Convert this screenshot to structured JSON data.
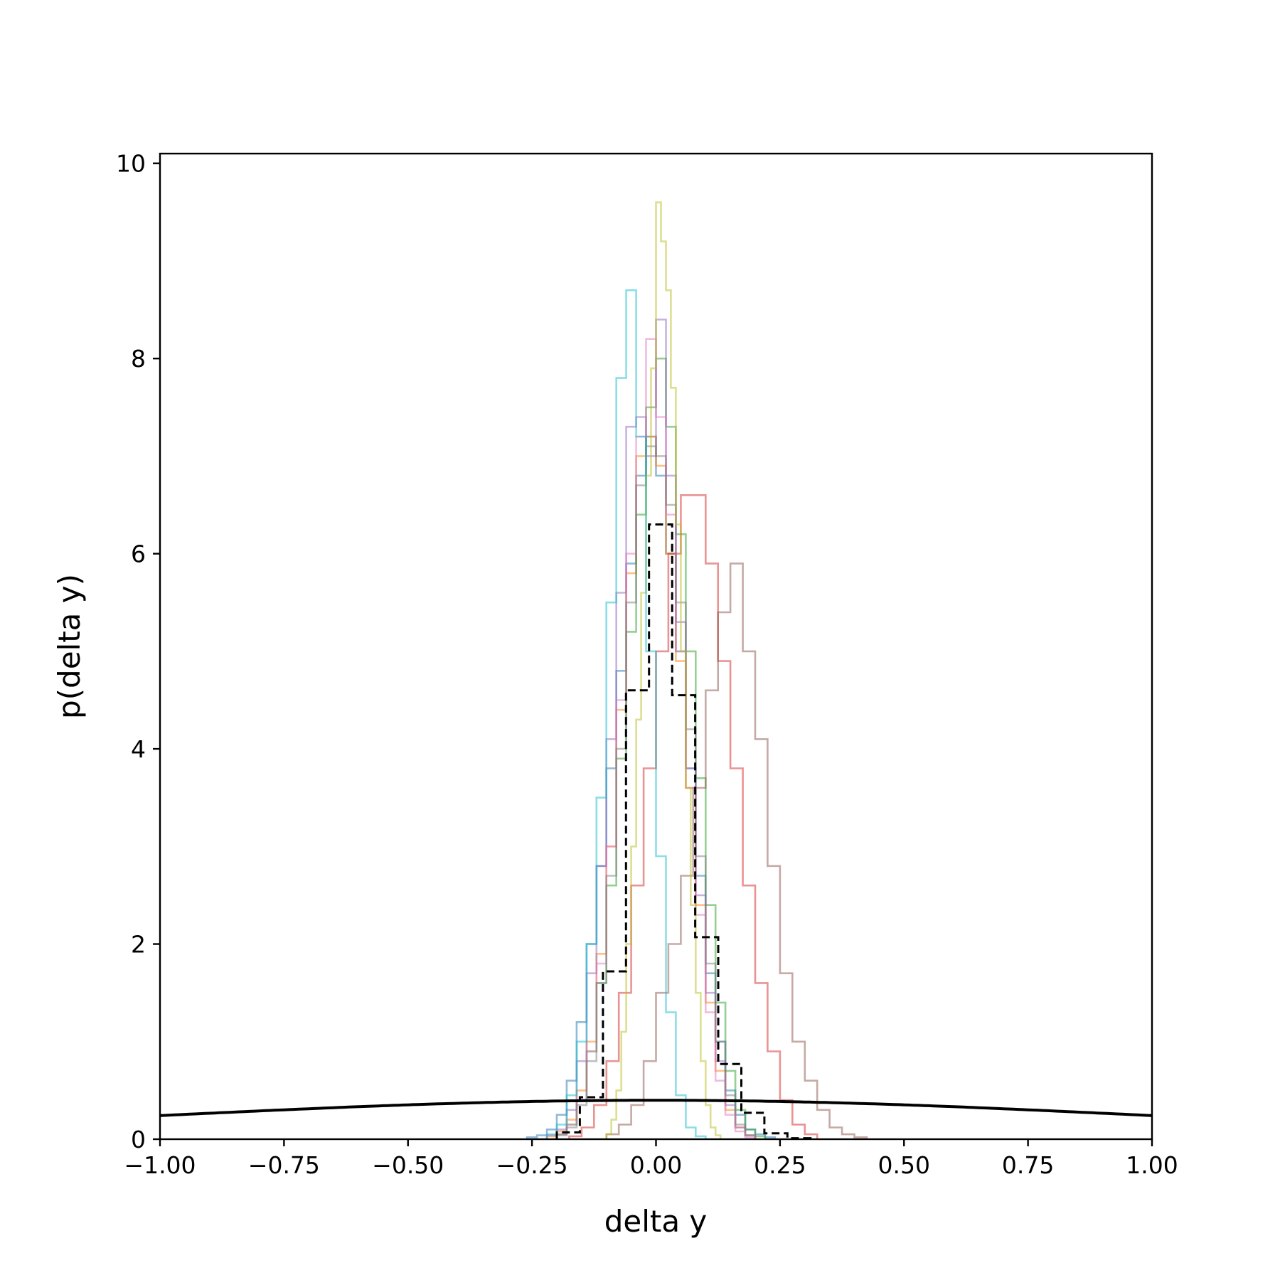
{
  "chart_data": {
    "type": "histogram",
    "xlabel": "delta y",
    "ylabel": "p(delta y)",
    "xlim": [
      -1.0,
      1.0
    ],
    "ylim": [
      0,
      10.1
    ],
    "xticks": [
      -1.0,
      -0.75,
      -0.5,
      -0.25,
      0.0,
      0.25,
      0.5,
      0.75,
      1.0
    ],
    "xtick_labels": [
      "−1.00",
      "−0.75",
      "−0.50",
      "−0.25",
      "0.00",
      "0.25",
      "0.50",
      "0.75",
      "1.00"
    ],
    "yticks": [
      0,
      2,
      4,
      6,
      8,
      10
    ],
    "ytick_labels": [
      "0",
      "2",
      "4",
      "6",
      "8",
      "10"
    ],
    "grid": false,
    "legend": false,
    "series": [
      {
        "color": "#1f77b4",
        "bin_width": 0.02,
        "x0": -0.26,
        "values": [
          0.02,
          0.04,
          0.1,
          0.25,
          0.6,
          1.2,
          2.0,
          2.8,
          3.8,
          4.8,
          5.9,
          6.8,
          7.2,
          6.8,
          6.0,
          5.0,
          3.8,
          2.7,
          1.7,
          1.0,
          0.5,
          0.25,
          0.1,
          0.05,
          0.02
        ]
      },
      {
        "color": "#ff7f0e",
        "bin_width": 0.02,
        "x0": -0.22,
        "values": [
          0.03,
          0.08,
          0.2,
          0.5,
          1.0,
          1.9,
          3.0,
          4.4,
          5.8,
          7.0,
          7.2,
          6.9,
          6.0,
          4.9,
          3.6,
          2.4,
          1.4,
          0.7,
          0.3,
          0.12,
          0.04
        ]
      },
      {
        "color": "#2ca02c",
        "bin_width": 0.02,
        "x0": -0.2,
        "values": [
          0.05,
          0.15,
          0.4,
          0.9,
          1.6,
          2.6,
          3.9,
          5.2,
          6.4,
          7.5,
          8.0,
          7.3,
          6.2,
          5.0,
          3.7,
          2.4,
          1.4,
          0.7,
          0.3,
          0.1,
          0.03
        ]
      },
      {
        "color": "#d62728",
        "bin_width": 0.025,
        "x0": -0.175,
        "values": [
          0.03,
          0.12,
          0.35,
          0.8,
          1.5,
          2.6,
          3.8,
          5.0,
          6.0,
          6.6,
          6.6,
          5.9,
          4.9,
          3.8,
          2.6,
          1.6,
          0.9,
          0.4,
          0.15,
          0.05
        ]
      },
      {
        "color": "#9467bd",
        "bin_width": 0.02,
        "x0": -0.22,
        "values": [
          0.04,
          0.1,
          0.3,
          0.8,
          1.7,
          2.8,
          4.1,
          5.6,
          7.3,
          7.4,
          7.0,
          8.4,
          6.8,
          5.3,
          3.8,
          2.5,
          1.5,
          0.8,
          0.35,
          0.12,
          0.04
        ]
      },
      {
        "color": "#8c564b",
        "bin_width": 0.025,
        "x0": -0.1,
        "values": [
          0.05,
          0.15,
          0.35,
          0.8,
          1.5,
          2.0,
          2.7,
          3.6,
          4.6,
          5.4,
          5.9,
          5.0,
          4.1,
          2.8,
          1.7,
          1.0,
          0.6,
          0.3,
          0.12,
          0.05,
          0.02
        ]
      },
      {
        "color": "#e377c2",
        "bin_width": 0.02,
        "x0": -0.2,
        "values": [
          0.05,
          0.15,
          0.4,
          0.9,
          1.8,
          3.0,
          4.5,
          6.0,
          7.2,
          8.2,
          7.4,
          6.4,
          5.0,
          3.6,
          2.3,
          1.3,
          0.6,
          0.25,
          0.08,
          0.02
        ]
      },
      {
        "color": "#7f7f7f",
        "bin_width": 0.02,
        "x0": -0.2,
        "values": [
          0.04,
          0.12,
          0.35,
          0.8,
          1.6,
          2.7,
          4.0,
          5.5,
          6.7,
          7.1,
          7.0,
          6.5,
          5.5,
          4.2,
          2.9,
          1.8,
          1.0,
          0.45,
          0.15,
          0.04
        ]
      },
      {
        "color": "#bcbd22",
        "bin_width": 0.01,
        "x0": -0.1,
        "values": [
          0.05,
          0.2,
          0.5,
          1.1,
          2.0,
          3.0,
          4.3,
          5.6,
          6.8,
          7.9,
          9.6,
          9.2,
          8.7,
          7.7,
          6.3,
          5.0,
          3.6,
          2.4,
          1.5,
          0.8,
          0.35,
          0.12,
          0.04
        ]
      },
      {
        "color": "#17becf",
        "bin_width": 0.02,
        "x0": -0.22,
        "values": [
          0.05,
          0.15,
          0.45,
          1.0,
          2.0,
          3.5,
          5.5,
          7.8,
          8.7,
          7.2,
          5.0,
          2.9,
          1.3,
          0.45,
          0.12,
          0.03
        ]
      },
      {
        "color": "#000000",
        "bin_width": 0.0465,
        "x0": -0.2,
        "values": [
          0.07,
          0.43,
          1.72,
          4.6,
          6.3,
          4.55,
          2.07,
          0.77,
          0.27,
          0.06,
          0.01
        ],
        "style": "dashed",
        "opacity": 1.0
      }
    ],
    "curve": {
      "type": "gaussian",
      "mean": 0.0,
      "sigma": 1.0,
      "color": "#000000"
    }
  }
}
